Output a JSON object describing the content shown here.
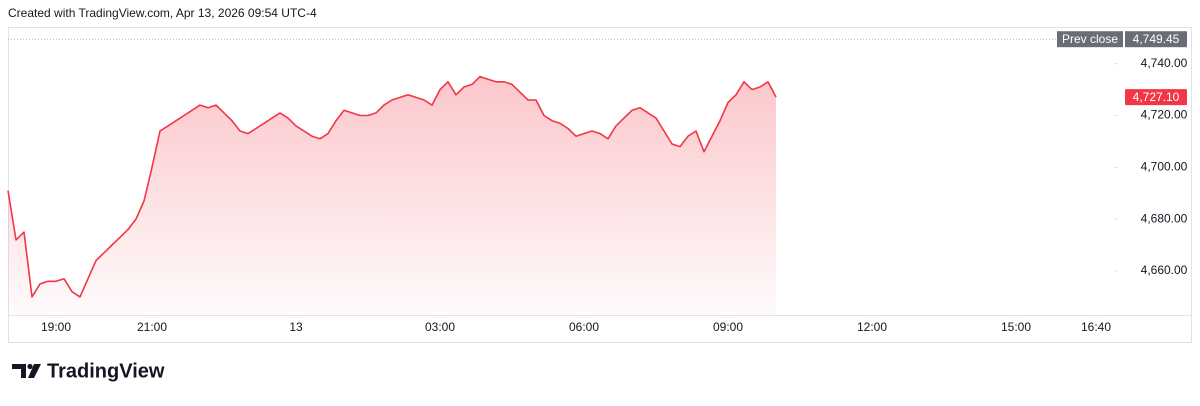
{
  "chart_data": {
    "type": "area",
    "title": "Created with TradingView.com, Apr 13, 2026 09:54 UTC-4",
    "brand": "TradingView",
    "color": "#f23645",
    "values": [
      4691,
      4672,
      4675,
      4650,
      4655,
      4656,
      4656,
      4657,
      4652,
      4650,
      4657,
      4664,
      4667,
      4670,
      4673,
      4676,
      4680,
      4687,
      4700,
      4714,
      4716,
      4718,
      4720,
      4722,
      4724,
      4723,
      4724,
      4721,
      4718,
      4714,
      4713,
      4715,
      4717,
      4719,
      4721,
      4719,
      4716,
      4714,
      4712,
      4711,
      4713,
      4718,
      4722,
      4721,
      4720,
      4720,
      4721,
      4724,
      4726,
      4727,
      4728,
      4727,
      4726,
      4724,
      4730,
      4733,
      4728,
      4731,
      4732,
      4735,
      4734,
      4733,
      4733,
      4732,
      4729,
      4726,
      4726,
      4720,
      4718,
      4717,
      4715,
      4712,
      4713,
      4714,
      4713,
      4711,
      4716,
      4719,
      4722,
      4723,
      4721,
      4719,
      4714,
      4709,
      4708,
      4712,
      4714,
      4706,
      4712,
      4718,
      4725,
      4728,
      4733,
      4730,
      4731,
      4733,
      4727.1
    ],
    "last_label": "4,727.10",
    "prev_close": {
      "value": 4749.45,
      "label": "4,749.45",
      "title": "Prev close"
    },
    "xlim": [
      0,
      138
    ],
    "xticks": [
      {
        "value": 6,
        "label": "19:00"
      },
      {
        "value": 18,
        "label": "21:00"
      },
      {
        "value": 36,
        "label": "13"
      },
      {
        "value": 54,
        "label": "03:00"
      },
      {
        "value": 72,
        "label": "06:00"
      },
      {
        "value": 90,
        "label": "09:00"
      },
      {
        "value": 108,
        "label": "12:00"
      },
      {
        "value": 126,
        "label": "15:00"
      },
      {
        "value": 136,
        "label": "16:40"
      }
    ],
    "ylim": [
      4643,
      4753
    ],
    "yticks": [
      {
        "value": 4660,
        "label": "4,660.00"
      },
      {
        "value": 4680,
        "label": "4,680.00"
      },
      {
        "value": 4700,
        "label": "4,700.00"
      },
      {
        "value": 4720,
        "label": "4,720.00"
      },
      {
        "value": 4740,
        "label": "4,740.00"
      }
    ]
  }
}
